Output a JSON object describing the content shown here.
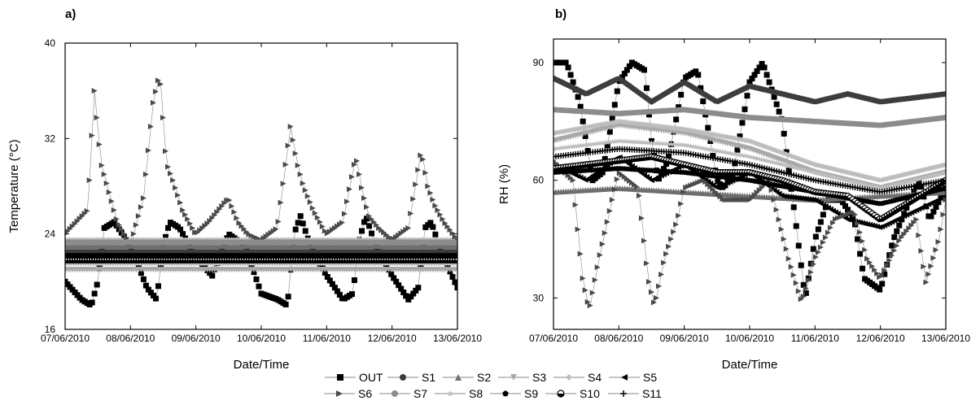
{
  "panel_labels": [
    "a)",
    "b)"
  ],
  "legend": [
    {
      "name": "OUT",
      "marker": "square",
      "color": "#000000"
    },
    {
      "name": "S1",
      "marker": "circle",
      "color": "#3d3d3d"
    },
    {
      "name": "S2",
      "marker": "triangle-up",
      "color": "#6e6e6e"
    },
    {
      "name": "S3",
      "marker": "triangle-down",
      "color": "#a8a8a8"
    },
    {
      "name": "S4",
      "marker": "diamond",
      "color": "#bdbdbd"
    },
    {
      "name": "S5",
      "marker": "triangle-left",
      "color": "#000000"
    },
    {
      "name": "S6",
      "marker": "triangle-right",
      "color": "#4a4a4a"
    },
    {
      "name": "S7",
      "marker": "circle",
      "color": "#8c8c8c"
    },
    {
      "name": "S8",
      "marker": "star",
      "color": "#bdbdbd"
    },
    {
      "name": "S9",
      "marker": "pentagon",
      "color": "#000000"
    },
    {
      "name": "S10",
      "marker": "circle-half",
      "color": "#000000"
    },
    {
      "name": "S11",
      "marker": "plus",
      "color": "#000000"
    }
  ],
  "chart_data": [
    {
      "type": "scatter",
      "panel": "a)",
      "title": "",
      "xlabel": "Date/Time",
      "ylabel": "Temperature (°C)",
      "x_ticks": [
        "07/06/2010",
        "08/06/2010",
        "09/06/2010",
        "10/06/2010",
        "11/06/2010",
        "12/06/2010",
        "13/06/2010"
      ],
      "xlim": [
        "07/06/2010",
        "13/06/2010"
      ],
      "y_ticks": [
        16,
        24,
        32,
        40
      ],
      "ylim": [
        16,
        40
      ],
      "grid": false,
      "series": [
        {
          "name": "OUT",
          "x": [
            0.0,
            0.25,
            0.4,
            0.5,
            0.6,
            0.75,
            1.0,
            1.25,
            1.4,
            1.5,
            1.6,
            1.75,
            2.0,
            2.25,
            2.5,
            2.75,
            3.0,
            3.25,
            3.4,
            3.5,
            3.6,
            3.75,
            4.0,
            4.25,
            4.4,
            4.5,
            4.6,
            4.75,
            5.0,
            5.25,
            5.4,
            5.5,
            5.6,
            5.75,
            6.0
          ],
          "y": [
            20,
            18.5,
            18,
            20,
            24.5,
            25,
            23,
            19.5,
            18.5,
            23,
            25,
            24.5,
            22,
            20.5,
            24,
            23,
            19,
            18.5,
            18,
            24,
            25.5,
            23,
            20.5,
            18.5,
            19,
            23.5,
            25.5,
            23,
            20.5,
            18.5,
            19.5,
            24.5,
            25,
            22.5,
            19.5
          ]
        },
        {
          "name": "S1",
          "x": [
            0,
            1,
            2,
            3,
            4,
            5,
            6
          ],
          "y": [
            22.5,
            22.5,
            22.5,
            22.5,
            22.5,
            22.5,
            22.5
          ]
        },
        {
          "name": "S2",
          "x": [
            0,
            1,
            2,
            3,
            4,
            5,
            6
          ],
          "y": [
            23,
            23,
            23,
            23,
            23,
            23,
            23
          ]
        },
        {
          "name": "S3",
          "x": [
            0,
            1,
            2,
            3,
            4,
            5,
            6
          ],
          "y": [
            21,
            21,
            21,
            21,
            21,
            21,
            21
          ]
        },
        {
          "name": "S4",
          "x": [
            0,
            1,
            2,
            3,
            4,
            5,
            6
          ],
          "y": [
            23.5,
            23.5,
            23.5,
            23.5,
            23.5,
            23.5,
            23.5
          ]
        },
        {
          "name": "S5",
          "x": [
            0,
            1,
            2,
            3,
            4,
            5,
            6
          ],
          "y": [
            22,
            22,
            22,
            22,
            22,
            22,
            22
          ]
        },
        {
          "name": "S6",
          "x": [
            0.0,
            0.35,
            0.45,
            0.55,
            0.65,
            0.8,
            1.0,
            1.2,
            1.35,
            1.45,
            1.55,
            1.65,
            1.8,
            2.0,
            2.2,
            2.5,
            2.65,
            2.8,
            3.0,
            3.25,
            3.45,
            3.55,
            3.65,
            3.8,
            4.0,
            4.25,
            4.45,
            4.55,
            4.65,
            4.8,
            5.0,
            5.25,
            5.45,
            5.55,
            5.65,
            5.8,
            6.0
          ],
          "y": [
            24,
            26,
            36,
            30,
            28,
            25,
            23,
            27,
            35,
            37.5,
            30,
            28.5,
            26,
            24,
            25,
            27,
            25,
            24,
            23.5,
            24.5,
            33,
            30,
            28,
            26,
            24,
            25,
            30.5,
            27.5,
            25.5,
            24.5,
            23.5,
            24.5,
            31,
            28,
            26.5,
            25,
            23.5
          ]
        },
        {
          "name": "S7",
          "x": [
            0,
            1,
            2,
            3,
            4,
            5,
            6
          ],
          "y": [
            23.3,
            23.3,
            23.3,
            23.3,
            23.3,
            23.3,
            23.3
          ]
        },
        {
          "name": "S8",
          "x": [
            0,
            1,
            2,
            3,
            4,
            5,
            6
          ],
          "y": [
            21.5,
            21.5,
            21.5,
            21.5,
            21.5,
            21.5,
            21.5
          ]
        },
        {
          "name": "S9",
          "x": [
            0,
            1,
            2,
            3,
            4,
            5,
            6
          ],
          "y": [
            22.2,
            22.2,
            22.2,
            22.2,
            22.2,
            22.2,
            22.2
          ]
        },
        {
          "name": "S10",
          "x": [
            0,
            1,
            2,
            3,
            4,
            5,
            6
          ],
          "y": [
            21.8,
            21.8,
            21.8,
            21.8,
            21.8,
            21.8,
            21.8
          ]
        },
        {
          "name": "S11",
          "x": [
            0,
            1,
            2,
            3,
            4,
            5,
            6
          ],
          "y": [
            22,
            22,
            22,
            22,
            22,
            22,
            22
          ]
        }
      ]
    },
    {
      "type": "scatter",
      "panel": "b)",
      "title": "",
      "xlabel": "Date/Time",
      "ylabel": "RH (%)",
      "x_ticks": [
        "07/06/2010",
        "08/06/2010",
        "09/06/2010",
        "10/06/2010",
        "11/06/2010",
        "12/06/2010",
        "13/06/2010"
      ],
      "xlim": [
        "07/06/2010",
        "13/06/2010"
      ],
      "y_ticks": [
        30,
        60,
        90
      ],
      "ylim": [
        22,
        96
      ],
      "grid": false,
      "series": [
        {
          "name": "OUT",
          "x": [
            0.0,
            0.2,
            0.4,
            0.5,
            0.6,
            0.75,
            1.0,
            1.2,
            1.4,
            1.5,
            1.6,
            1.75,
            2.0,
            2.2,
            2.4,
            2.5,
            2.6,
            2.75,
            3.0,
            3.2,
            3.5,
            3.7,
            3.85,
            4.0,
            4.2,
            4.4,
            4.6,
            4.75,
            5.0,
            5.2,
            5.45,
            5.6,
            5.75,
            6.0
          ],
          "y": [
            90,
            90,
            80,
            70,
            60,
            62,
            85,
            90,
            88,
            70,
            60,
            65,
            86,
            88,
            70,
            60,
            58,
            62,
            85,
            90,
            75,
            50,
            30,
            45,
            55,
            55,
            50,
            35,
            32,
            45,
            55,
            60,
            50,
            58
          ]
        },
        {
          "name": "S1",
          "x": [
            0,
            0.5,
            1,
            1.5,
            2,
            2.5,
            3,
            3.5,
            4,
            4.5,
            5,
            5.5,
            6
          ],
          "y": [
            86,
            82,
            86,
            80,
            85,
            80,
            84,
            82,
            80,
            82,
            80,
            81,
            82
          ]
        },
        {
          "name": "S2",
          "x": [
            0,
            1,
            2,
            3,
            4,
            5,
            6
          ],
          "y": [
            57,
            58,
            57,
            56,
            55,
            56,
            57
          ]
        },
        {
          "name": "S3",
          "x": [
            0,
            1,
            2,
            3,
            4,
            5,
            6
          ],
          "y": [
            70,
            74,
            72,
            68,
            62,
            58,
            62
          ]
        },
        {
          "name": "S4",
          "x": [
            0,
            1,
            2,
            3,
            4,
            5,
            6
          ],
          "y": [
            72,
            75,
            73,
            70,
            64,
            60,
            64
          ]
        },
        {
          "name": "S5",
          "x": [
            0,
            0.5,
            1,
            1.5,
            2,
            2.5,
            3,
            3.5,
            4,
            4.5,
            5,
            5.5,
            6
          ],
          "y": [
            64,
            60,
            66,
            60,
            64,
            58,
            62,
            56,
            55,
            50,
            48,
            52,
            56
          ]
        },
        {
          "name": "S6",
          "x": [
            0.0,
            0.3,
            0.45,
            0.55,
            0.7,
            0.9,
            1.0,
            1.3,
            1.45,
            1.55,
            1.7,
            1.9,
            2.0,
            2.3,
            2.6,
            3.0,
            3.3,
            3.6,
            3.8,
            4.0,
            4.3,
            4.6,
            4.8,
            5.0,
            5.3,
            5.55,
            5.7,
            5.9,
            6.0
          ],
          "y": [
            65,
            60,
            35,
            27,
            40,
            55,
            62,
            58,
            35,
            28,
            40,
            50,
            58,
            60,
            55,
            55,
            60,
            40,
            29,
            40,
            50,
            52,
            40,
            35,
            45,
            50,
            34,
            45,
            55
          ]
        },
        {
          "name": "S7",
          "x": [
            0,
            1,
            2,
            3,
            4,
            5,
            6
          ],
          "y": [
            78,
            77,
            78,
            76,
            75,
            74,
            76
          ]
        },
        {
          "name": "S8",
          "x": [
            0,
            1,
            2,
            3,
            4,
            5,
            6
          ],
          "y": [
            68,
            70,
            69,
            66,
            62,
            58,
            62
          ]
        },
        {
          "name": "S9",
          "x": [
            0,
            1,
            2,
            3,
            4,
            5,
            6
          ],
          "y": [
            62,
            63,
            62,
            60,
            57,
            54,
            58
          ]
        },
        {
          "name": "S10",
          "x": [
            0,
            0.5,
            1,
            1.5,
            2,
            2.5,
            3,
            3.5,
            4,
            4.5,
            5,
            5.5,
            6
          ],
          "y": [
            63,
            64,
            65,
            66,
            64,
            62,
            62,
            60,
            57,
            56,
            50,
            55,
            60
          ]
        },
        {
          "name": "S11",
          "x": [
            0,
            1,
            2,
            3,
            4,
            5,
            6
          ],
          "y": [
            66,
            68,
            67,
            64,
            60,
            57,
            60
          ]
        }
      ]
    }
  ]
}
